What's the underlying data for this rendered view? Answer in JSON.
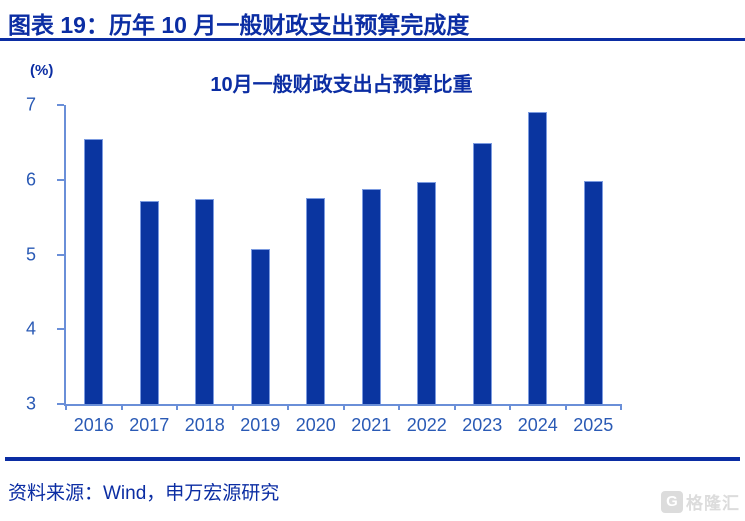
{
  "header": {
    "title": "图表 19：历年 10 月一般财政支出预算完成度"
  },
  "chart_data": {
    "type": "bar",
    "title": "10月一般财政支出占预算比重",
    "unit_label": "(%)",
    "categories": [
      "2016",
      "2017",
      "2018",
      "2019",
      "2020",
      "2021",
      "2022",
      "2023",
      "2024",
      "2025"
    ],
    "values": [
      6.54,
      5.71,
      5.74,
      5.08,
      5.76,
      5.87,
      5.97,
      6.49,
      6.9,
      5.98
    ],
    "ylim": [
      3,
      7
    ],
    "y_ticks": [
      7,
      6,
      5,
      4,
      3
    ],
    "xlabel": "",
    "ylabel": "",
    "grid": false,
    "legend_position": "none",
    "bar_color": "#0a35a0",
    "axis_color": "#6a8fd8",
    "tick_label_color": "#2a5ab5"
  },
  "footer": {
    "source": "资料来源：Wind，申万宏源研究",
    "watermark_logo_letter": "G",
    "watermark_text": "格隆汇"
  },
  "colors": {
    "accent_navy": "#0b2da3",
    "watermark_gray": "#d6d6d6"
  }
}
